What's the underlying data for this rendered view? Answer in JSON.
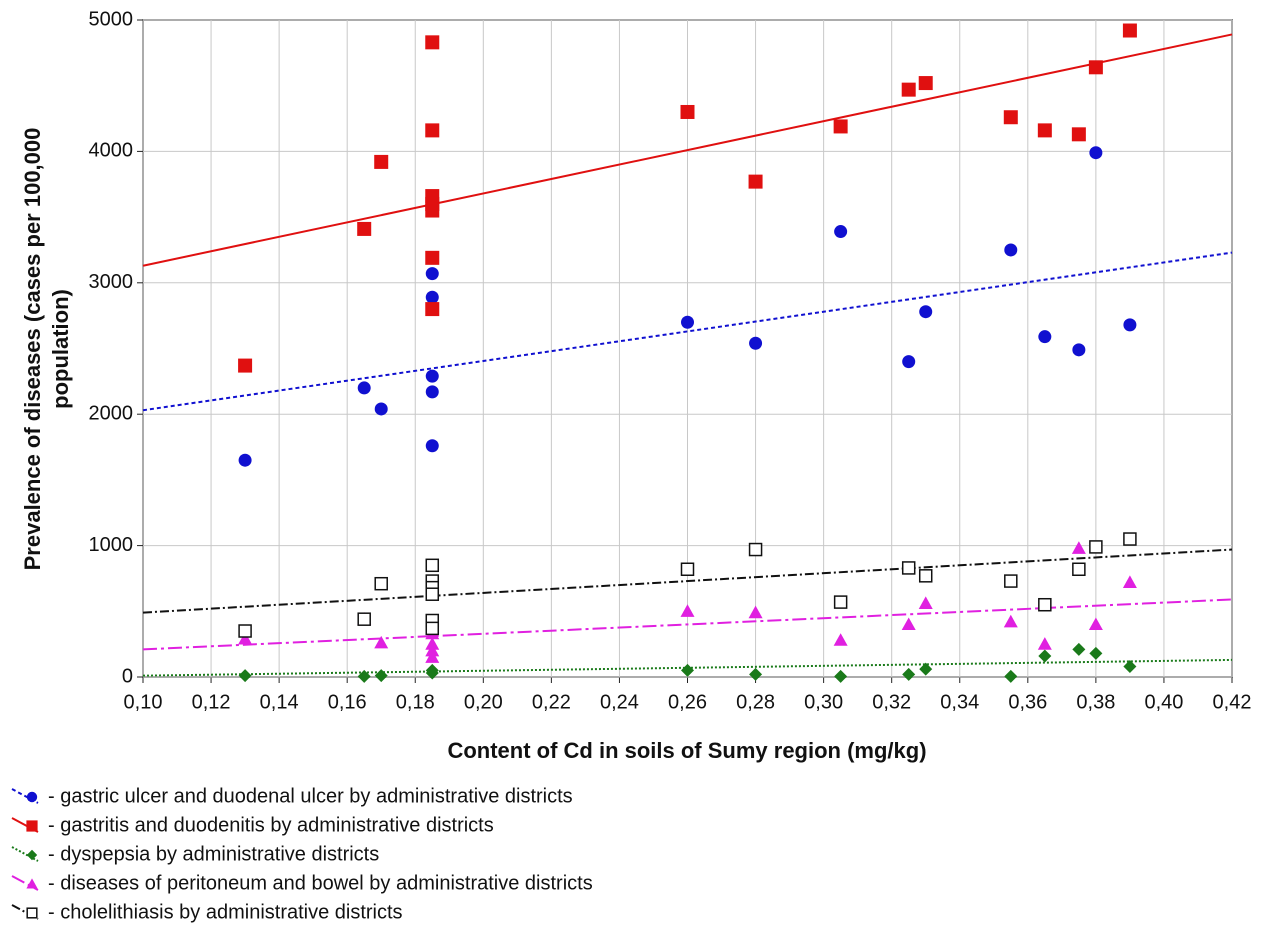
{
  "chart_data": {
    "type": "scatter",
    "xlabel": "Content of Cd in soils of Sumy region (mg/kg)",
    "ylabel": [
      "Prevalence of diseases (cases per 100,000",
      "population)"
    ],
    "xlim": [
      0.1,
      0.42
    ],
    "ylim": [
      0,
      5000
    ],
    "xticks": [
      {
        "value": 0.1,
        "label": "0,10"
      },
      {
        "value": 0.12,
        "label": "0,12"
      },
      {
        "value": 0.14,
        "label": "0,14"
      },
      {
        "value": 0.16,
        "label": "0,16"
      },
      {
        "value": 0.18,
        "label": "0,18"
      },
      {
        "value": 0.2,
        "label": "0,20"
      },
      {
        "value": 0.22,
        "label": "0,22"
      },
      {
        "value": 0.24,
        "label": "0,24"
      },
      {
        "value": 0.26,
        "label": "0,26"
      },
      {
        "value": 0.28,
        "label": "0,28"
      },
      {
        "value": 0.3,
        "label": "0,30"
      },
      {
        "value": 0.32,
        "label": "0,32"
      },
      {
        "value": 0.34,
        "label": "0,34"
      },
      {
        "value": 0.36,
        "label": "0,36"
      },
      {
        "value": 0.38,
        "label": "0,38"
      },
      {
        "value": 0.4,
        "label": "0,40"
      },
      {
        "value": 0.42,
        "label": "0,42"
      }
    ],
    "yticks": [
      0,
      1000,
      2000,
      3000,
      4000,
      5000
    ],
    "grid": true,
    "series": [
      {
        "name": "- gastric ulcer and duodenal ulcer by administrative districts",
        "color": "#1010d0",
        "marker": "circle",
        "dash": "4,3",
        "x": [
          0.13,
          0.165,
          0.17,
          0.185,
          0.185,
          0.185,
          0.185,
          0.185,
          0.26,
          0.28,
          0.305,
          0.325,
          0.33,
          0.355,
          0.365,
          0.375,
          0.38,
          0.39
        ],
        "values": [
          1650,
          2200,
          2040,
          3070,
          2890,
          2290,
          2170,
          1760,
          2700,
          2540,
          3390,
          2400,
          2780,
          3250,
          2590,
          2490,
          3990,
          2680
        ],
        "fit": {
          "x": [
            0.1,
            0.42
          ],
          "values": [
            2030,
            3230
          ]
        }
      },
      {
        "name": "- gastritis and duodenitis by administrative districts",
        "color": "#e01010",
        "marker": "square",
        "dash": "",
        "x": [
          0.13,
          0.165,
          0.17,
          0.185,
          0.185,
          0.185,
          0.185,
          0.185,
          0.185,
          0.185,
          0.26,
          0.28,
          0.305,
          0.325,
          0.33,
          0.355,
          0.365,
          0.375,
          0.38,
          0.39
        ],
        "values": [
          2370,
          3410,
          3920,
          4830,
          4160,
          3660,
          3600,
          3550,
          3190,
          2800,
          4300,
          3770,
          4190,
          4470,
          4520,
          4260,
          4160,
          4130,
          4640,
          4920
        ],
        "fit": {
          "x": [
            0.1,
            0.42
          ],
          "values": [
            3130,
            4890
          ]
        }
      },
      {
        "name": "- dyspepsia by administrative districts",
        "color": "#1a7a1a",
        "marker": "diamond",
        "dash": "2,2",
        "x": [
          0.13,
          0.165,
          0.17,
          0.185,
          0.185,
          0.26,
          0.28,
          0.305,
          0.325,
          0.33,
          0.355,
          0.365,
          0.375,
          0.38,
          0.39
        ],
        "values": [
          10,
          5,
          10,
          50,
          30,
          50,
          20,
          5,
          20,
          60,
          5,
          160,
          210,
          180,
          80
        ],
        "fit": {
          "x": [
            0.1,
            0.42
          ],
          "values": [
            10,
            130
          ]
        }
      },
      {
        "name": "- diseases  of  peritoneum and bowel by administrative districts",
        "color": "#e020e0",
        "marker": "triangle",
        "dash": "14,4,3,4",
        "x": [
          0.13,
          0.165,
          0.17,
          0.185,
          0.185,
          0.185,
          0.185,
          0.26,
          0.28,
          0.305,
          0.325,
          0.33,
          0.355,
          0.365,
          0.375,
          0.38,
          0.39
        ],
        "values": [
          290,
          440,
          260,
          330,
          250,
          200,
          150,
          500,
          490,
          280,
          400,
          560,
          420,
          250,
          980,
          400,
          720
        ],
        "fit": {
          "x": [
            0.1,
            0.42
          ],
          "values": [
            210,
            590
          ]
        }
      },
      {
        "name": "- cholelithiasis by administrative districts",
        "color": "#111111",
        "marker": "open-square",
        "dash": "9,3,2,3",
        "x": [
          0.13,
          0.165,
          0.17,
          0.185,
          0.185,
          0.185,
          0.185,
          0.185,
          0.185,
          0.26,
          0.28,
          0.305,
          0.325,
          0.33,
          0.355,
          0.365,
          0.375,
          0.38,
          0.39
        ],
        "values": [
          350,
          440,
          710,
          850,
          730,
          680,
          630,
          430,
          370,
          820,
          970,
          570,
          830,
          770,
          730,
          550,
          820,
          990,
          1050
        ],
        "fit": {
          "x": [
            0.1,
            0.42
          ],
          "values": [
            490,
            970
          ]
        }
      }
    ]
  }
}
